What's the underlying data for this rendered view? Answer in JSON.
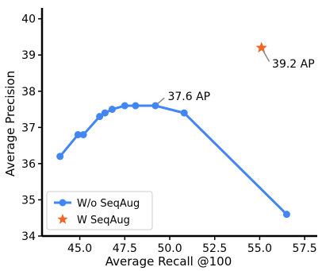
{
  "chart_data": {
    "type": "line",
    "title": "",
    "xlabel": "Average Recall @100",
    "ylabel": "Average Precision",
    "xlim": [
      42.9,
      58.2
    ],
    "ylim": [
      34,
      40.3
    ],
    "grid": false,
    "legend_position": "lower-left",
    "xticks": [
      45.0,
      47.5,
      50.0,
      52.5,
      55.0,
      57.5
    ],
    "xtick_labels": [
      "45.0",
      "47.5",
      "50.0",
      "52.5",
      "55.0",
      "57.5"
    ],
    "yticks": [
      34,
      35,
      36,
      37,
      38,
      39,
      40
    ],
    "ytick_labels": [
      "34",
      "35",
      "36",
      "37",
      "38",
      "39",
      "40"
    ],
    "series": [
      {
        "name": "W/o SeqAug",
        "kind": "line-with-markers",
        "color": "#4285f4",
        "x": [
          43.9,
          44.9,
          45.2,
          46.1,
          46.4,
          46.8,
          47.5,
          48.1,
          49.2,
          50.8,
          56.5
        ],
        "y": [
          36.2,
          36.8,
          36.8,
          37.3,
          37.4,
          37.5,
          37.6,
          37.6,
          37.6,
          37.4,
          34.6
        ]
      },
      {
        "name": "W SeqAug",
        "kind": "star-marker",
        "color": "#f26522",
        "x": [
          55.1
        ],
        "y": [
          39.2
        ]
      }
    ],
    "annotations": [
      {
        "text": "37.6 AP",
        "point": [
          49.2,
          37.6
        ],
        "text_at": [
          49.8,
          37.75
        ]
      },
      {
        "text": "39.2 AP",
        "point": [
          55.1,
          39.2
        ],
        "text_at": [
          55.6,
          38.65
        ]
      }
    ]
  }
}
